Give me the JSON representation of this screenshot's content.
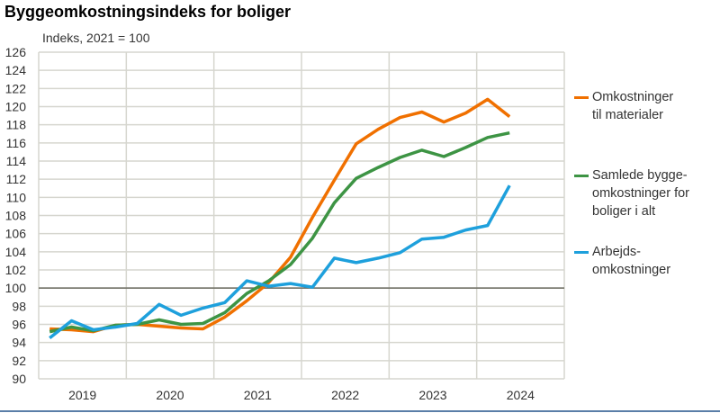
{
  "chart_data": {
    "type": "line",
    "title": "Byggeomkostningsindeks for boliger",
    "ylabel": "Indeks, 2021 = 100",
    "ylim": [
      90,
      126
    ],
    "yticks": [
      90,
      92,
      94,
      96,
      98,
      100,
      102,
      104,
      106,
      108,
      110,
      112,
      114,
      116,
      118,
      120,
      122,
      124,
      126
    ],
    "reference_line": 100,
    "x": [
      "2019K1",
      "2019K2",
      "2019K3",
      "2019K4",
      "2020K1",
      "2020K2",
      "2020K3",
      "2020K4",
      "2021K1",
      "2021K2",
      "2021K3",
      "2021K4",
      "2022K1",
      "2022K2",
      "2022K3",
      "2022K4",
      "2023K1",
      "2023K2",
      "2023K3",
      "2023K4",
      "2024K1",
      "2024K2"
    ],
    "xtick_labels": [
      "2019",
      "2020",
      "2021",
      "2022",
      "2023",
      "2024"
    ],
    "grid": true,
    "legend_position": "right",
    "series": [
      {
        "name": "Omkostninger til materialer",
        "label_lines": [
          "Omkostninger",
          "til materialer"
        ],
        "color": "#f07000",
        "values": [
          95.5,
          95.4,
          95.2,
          95.9,
          96.0,
          95.8,
          95.6,
          95.5,
          96.8,
          98.6,
          100.6,
          103.4,
          107.8,
          111.9,
          115.9,
          117.5,
          118.8,
          119.4,
          118.3,
          119.3,
          120.8,
          118.9
        ]
      },
      {
        "name": "Samlede byggeomkostninger for boliger i alt",
        "label_lines": [
          "Samlede bygge-",
          "omkostninger for",
          "boliger i alt"
        ],
        "color": "#3d9444",
        "values": [
          95.2,
          95.7,
          95.3,
          95.9,
          96.0,
          96.5,
          96.0,
          96.1,
          97.3,
          99.4,
          100.8,
          102.6,
          105.5,
          109.4,
          112.1,
          113.3,
          114.4,
          115.2,
          114.5,
          115.5,
          116.6,
          117.1
        ]
      },
      {
        "name": "Arbejdsomkostninger",
        "label_lines": [
          "Arbejds-",
          "omkostninger"
        ],
        "color": "#1ea0dc",
        "values": [
          94.5,
          96.4,
          95.4,
          95.7,
          96.1,
          98.2,
          97.0,
          97.8,
          98.4,
          100.8,
          100.2,
          100.5,
          100.1,
          103.3,
          102.8,
          103.3,
          103.9,
          105.4,
          105.6,
          106.4,
          106.9,
          111.3
        ]
      }
    ]
  }
}
